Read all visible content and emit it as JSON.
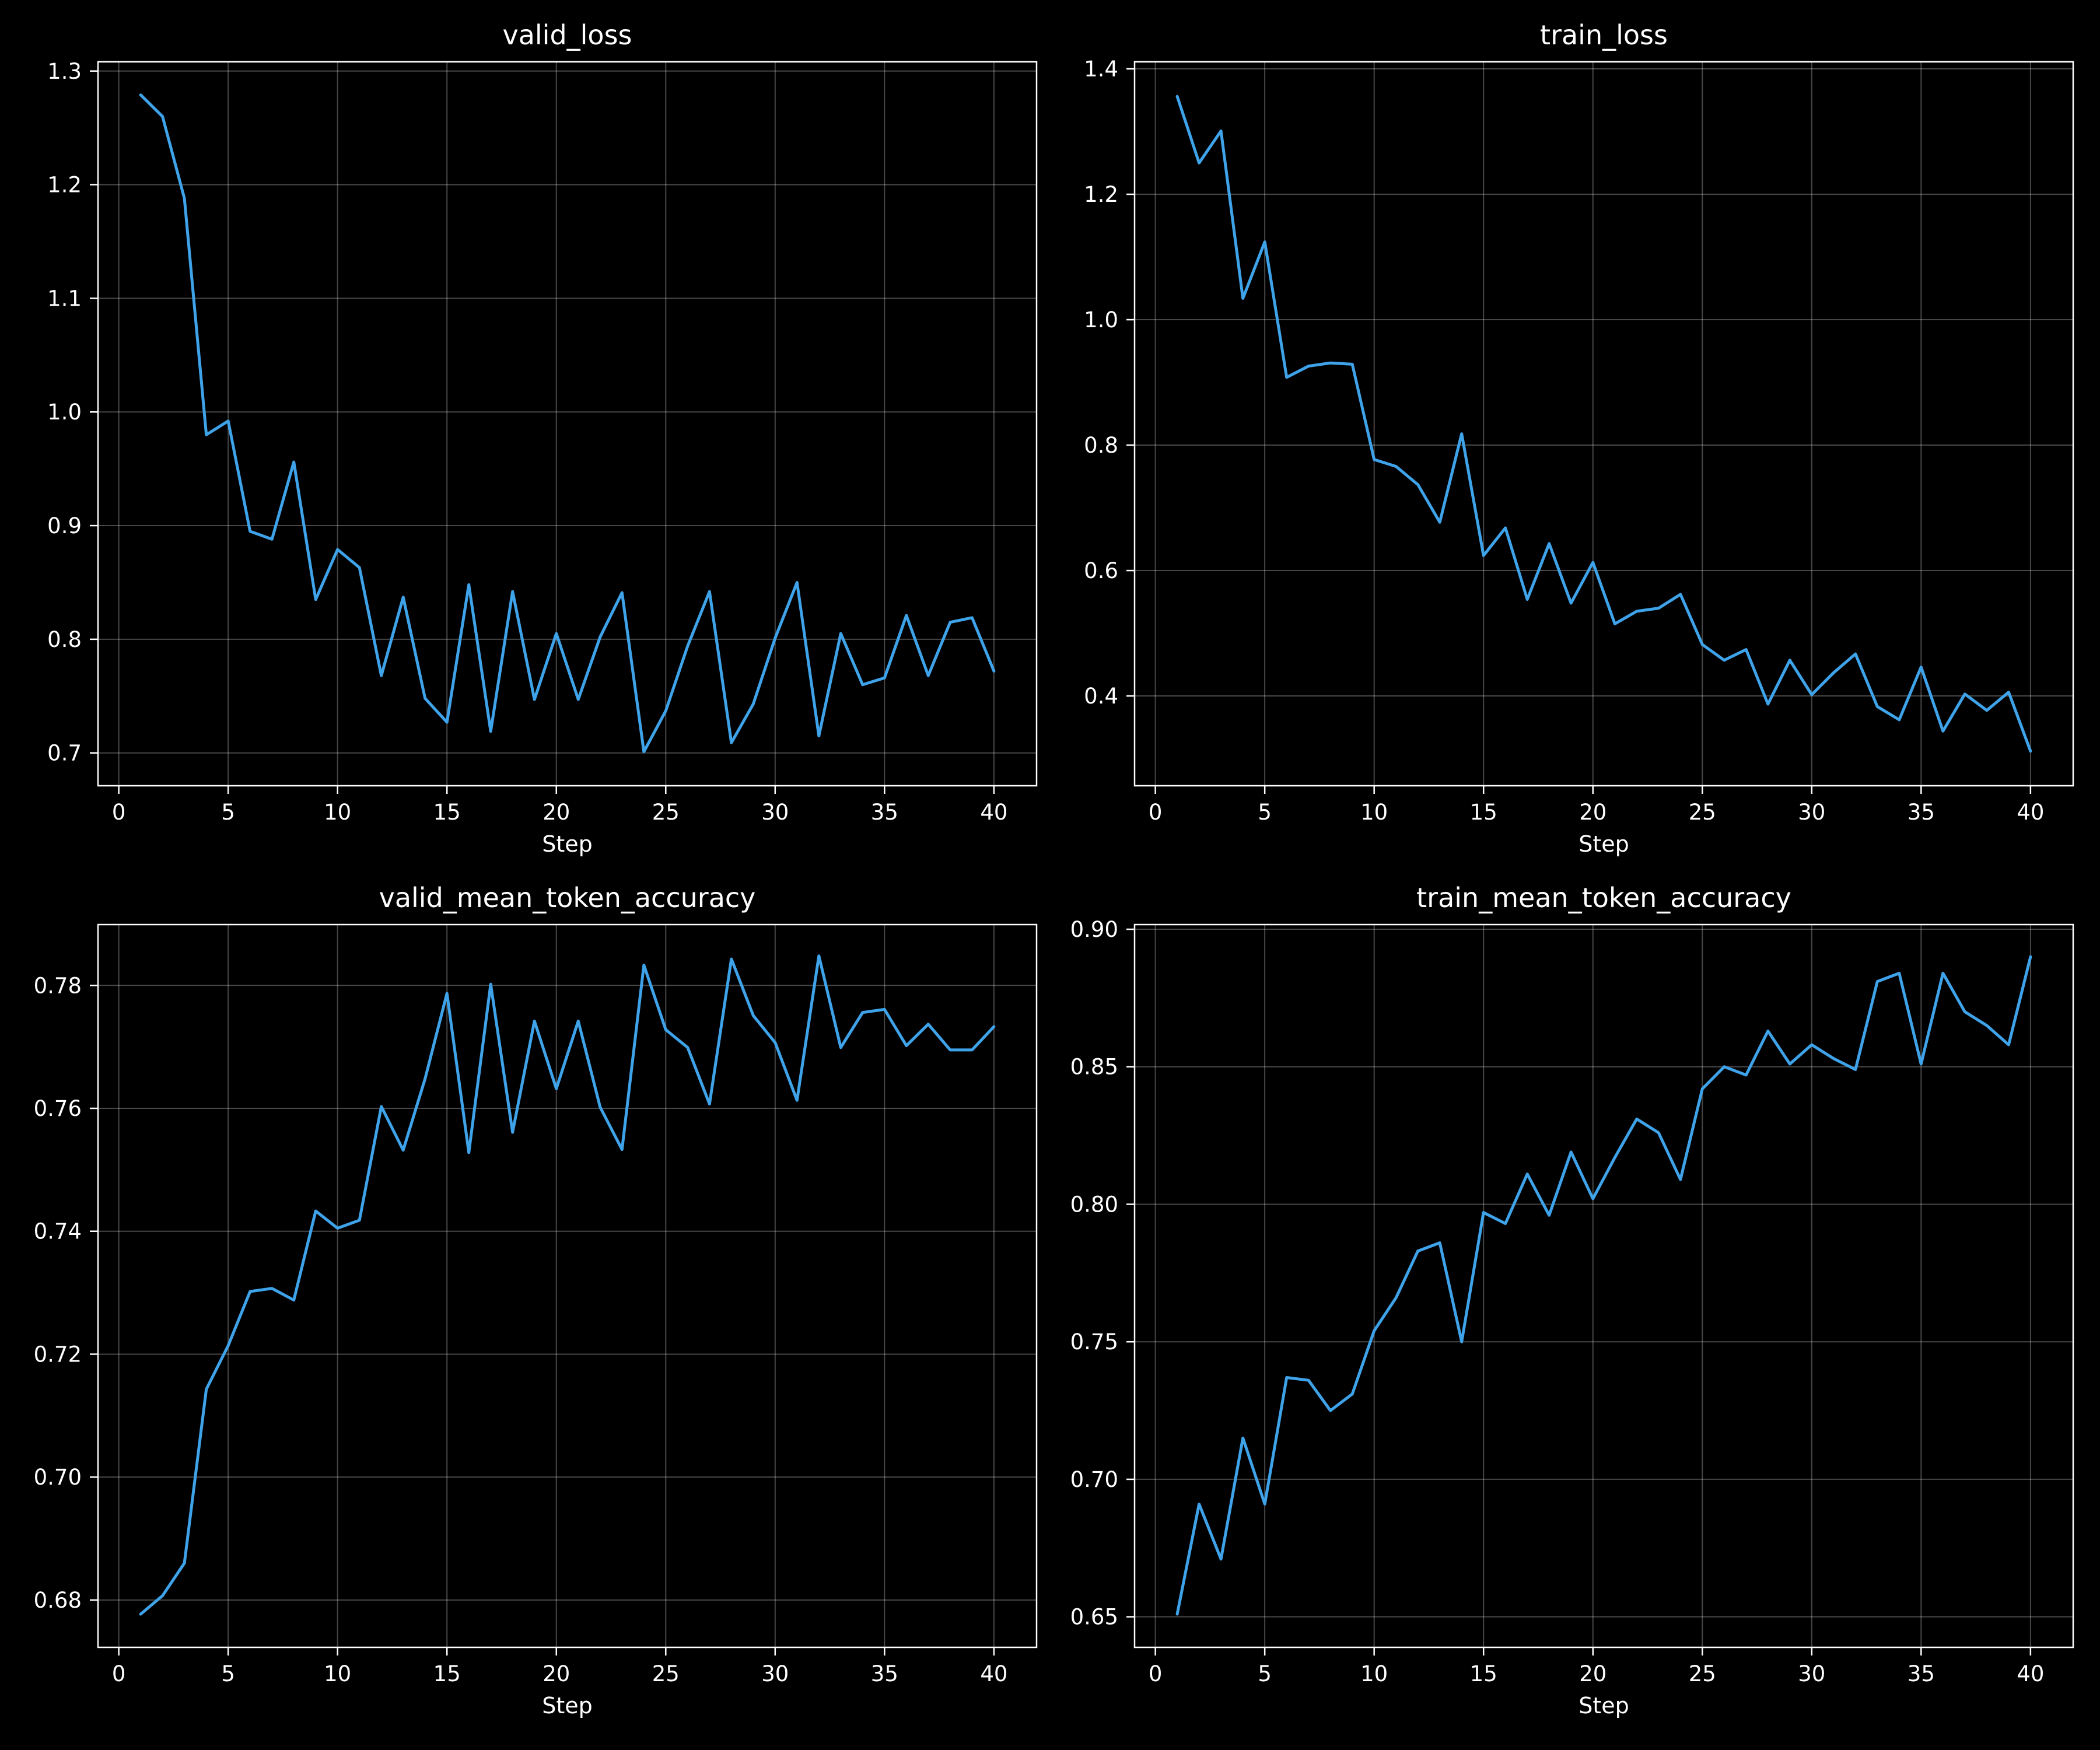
{
  "colors": {
    "background": "#000000",
    "foreground": "#ffffff",
    "series": "#3fa3ea"
  },
  "chart_data": [
    {
      "type": "line",
      "title": "valid_loss",
      "xlabel": "Step",
      "ylabel": "",
      "grid": true,
      "xlim": [
        -0.95,
        41.95
      ],
      "ylim": [
        0.6711,
        1.3081
      ],
      "xticks": [
        0,
        5,
        10,
        15,
        20,
        25,
        30,
        35,
        40
      ],
      "yticks": [
        0.7,
        0.8,
        0.9,
        1.0,
        1.1,
        1.2,
        1.3
      ],
      "ytick_labels": [
        "0.7",
        "0.8",
        "0.9",
        "1.0",
        "1.1",
        "1.2",
        "1.3"
      ],
      "x": [
        1,
        2,
        3,
        4,
        5,
        6,
        7,
        8,
        9,
        10,
        11,
        12,
        13,
        14,
        15,
        16,
        17,
        18,
        19,
        20,
        21,
        22,
        23,
        24,
        25,
        26,
        27,
        28,
        29,
        30,
        31,
        32,
        33,
        34,
        35,
        36,
        37,
        38,
        39,
        40
      ],
      "series": [
        {
          "values": [
            1.279,
            1.26,
            1.188,
            0.98,
            0.992,
            0.895,
            0.888,
            0.956,
            0.835,
            0.879,
            0.863,
            0.768,
            0.837,
            0.748,
            0.727,
            0.848,
            0.719,
            0.842,
            0.747,
            0.805,
            0.747,
            0.802,
            0.841,
            0.701,
            0.737,
            0.794,
            0.842,
            0.709,
            0.743,
            0.801,
            0.85,
            0.715,
            0.805,
            0.76,
            0.766,
            0.821,
            0.768,
            0.815,
            0.819,
            0.772
          ]
        }
      ]
    },
    {
      "type": "line",
      "title": "train_loss",
      "xlabel": "Step",
      "ylabel": "",
      "grid": true,
      "xlim": [
        -0.95,
        41.95
      ],
      "ylim": [
        0.2568,
        1.4112
      ],
      "xticks": [
        0,
        5,
        10,
        15,
        20,
        25,
        30,
        35,
        40
      ],
      "yticks": [
        0.4,
        0.6,
        0.8,
        1.0,
        1.2,
        1.4
      ],
      "ytick_labels": [
        "0.4",
        "0.6",
        "0.8",
        "1.0",
        "1.2",
        "1.4"
      ],
      "x": [
        1,
        2,
        3,
        4,
        5,
        6,
        7,
        8,
        9,
        10,
        11,
        12,
        13,
        14,
        15,
        16,
        17,
        18,
        19,
        20,
        21,
        22,
        23,
        24,
        25,
        26,
        27,
        28,
        29,
        30,
        31,
        32,
        33,
        34,
        35,
        36,
        37,
        38,
        39,
        40
      ],
      "series": [
        {
          "values": [
            1.356,
            1.25,
            1.301,
            1.034,
            1.124,
            0.908,
            0.926,
            0.931,
            0.929,
            0.777,
            0.766,
            0.737,
            0.677,
            0.818,
            0.624,
            0.668,
            0.554,
            0.643,
            0.548,
            0.613,
            0.515,
            0.535,
            0.54,
            0.562,
            0.482,
            0.457,
            0.474,
            0.387,
            0.457,
            0.402,
            0.437,
            0.467,
            0.383,
            0.362,
            0.446,
            0.344,
            0.403,
            0.377,
            0.406,
            0.312
          ]
        }
      ]
    },
    {
      "type": "line",
      "title": "valid_mean_token_accuracy",
      "xlabel": "Step",
      "ylabel": "",
      "grid": true,
      "xlim": [
        -0.95,
        41.95
      ],
      "ylim": [
        0.6723,
        0.7899
      ],
      "xticks": [
        0,
        5,
        10,
        15,
        20,
        25,
        30,
        35,
        40
      ],
      "yticks": [
        0.68,
        0.7,
        0.72,
        0.74,
        0.76,
        0.78
      ],
      "ytick_labels": [
        "0.68",
        "0.70",
        "0.72",
        "0.74",
        "0.76",
        "0.78"
      ],
      "x": [
        1,
        2,
        3,
        4,
        5,
        6,
        7,
        8,
        9,
        10,
        11,
        12,
        13,
        14,
        15,
        16,
        17,
        18,
        19,
        20,
        21,
        22,
        23,
        24,
        25,
        26,
        27,
        28,
        29,
        30,
        31,
        32,
        33,
        34,
        35,
        36,
        37,
        38,
        39,
        40
      ],
      "series": [
        {
          "values": [
            0.6777,
            0.6807,
            0.686,
            0.7143,
            0.7214,
            0.7302,
            0.7307,
            0.7288,
            0.7433,
            0.7405,
            0.7418,
            0.7603,
            0.7532,
            0.7648,
            0.7787,
            0.7528,
            0.7802,
            0.7561,
            0.7742,
            0.7632,
            0.7742,
            0.7602,
            0.7533,
            0.7833,
            0.7728,
            0.7699,
            0.7607,
            0.7843,
            0.7751,
            0.7707,
            0.7613,
            0.7848,
            0.7699,
            0.7756,
            0.7761,
            0.7702,
            0.7737,
            0.7695,
            0.7695,
            0.7733
          ]
        }
      ]
    },
    {
      "type": "line",
      "title": "train_mean_token_accuracy",
      "xlabel": "Step",
      "ylabel": "",
      "grid": true,
      "xlim": [
        -0.95,
        41.95
      ],
      "ylim": [
        0.6389,
        0.9017
      ],
      "xticks": [
        0,
        5,
        10,
        15,
        20,
        25,
        30,
        35,
        40
      ],
      "yticks": [
        0.65,
        0.7,
        0.75,
        0.8,
        0.85,
        0.9
      ],
      "ytick_labels": [
        "0.65",
        "0.70",
        "0.75",
        "0.80",
        "0.85",
        "0.90"
      ],
      "x": [
        1,
        2,
        3,
        4,
        5,
        6,
        7,
        8,
        9,
        10,
        11,
        12,
        13,
        14,
        15,
        16,
        17,
        18,
        19,
        20,
        21,
        22,
        23,
        24,
        25,
        26,
        27,
        28,
        29,
        30,
        31,
        32,
        33,
        34,
        35,
        36,
        37,
        38,
        39,
        40
      ],
      "series": [
        {
          "values": [
            0.651,
            0.691,
            0.671,
            0.715,
            0.691,
            0.737,
            0.736,
            0.725,
            0.731,
            0.754,
            0.766,
            0.783,
            0.786,
            0.75,
            0.797,
            0.793,
            0.811,
            0.796,
            0.819,
            0.802,
            0.817,
            0.831,
            0.826,
            0.809,
            0.842,
            0.85,
            0.847,
            0.863,
            0.851,
            0.858,
            0.853,
            0.849,
            0.881,
            0.884,
            0.851,
            0.884,
            0.87,
            0.865,
            0.858,
            0.89
          ]
        }
      ]
    }
  ]
}
